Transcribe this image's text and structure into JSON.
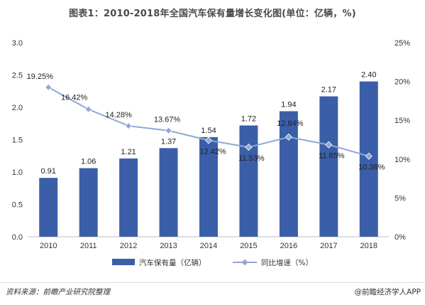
{
  "chart_data": {
    "type": "bar+line",
    "title": "图表1：2010-2018年全国汽车保有量增长变化图(单位：亿辆，%)",
    "categories": [
      "2010",
      "2011",
      "2012",
      "2013",
      "2014",
      "2015",
      "2016",
      "2017",
      "2018"
    ],
    "series": [
      {
        "name": "汽车保有量（亿辆）",
        "type": "bar",
        "axis": "left",
        "color": "#3a5fa8",
        "values": [
          0.91,
          1.06,
          1.21,
          1.37,
          1.54,
          1.72,
          1.94,
          2.17,
          2.4
        ],
        "labels": [
          "0.91",
          "1.06",
          "1.21",
          "1.37",
          "1.54",
          "1.72",
          "1.94",
          "2.17",
          "2.40"
        ]
      },
      {
        "name": "同比增速（%）",
        "type": "line",
        "axis": "right",
        "color": "#8fa8d4",
        "values": [
          19.25,
          16.42,
          14.28,
          13.67,
          12.42,
          11.53,
          12.84,
          11.85,
          10.38
        ],
        "labels": [
          "19.25%",
          "16.42%",
          "14.28%",
          "13.67%",
          "12.42%",
          "11.53%",
          "12.84%",
          "11.85%",
          "10.38%"
        ]
      }
    ],
    "y_left": {
      "min": 0,
      "max": 3.0,
      "ticks": [
        0.0,
        0.5,
        1.0,
        1.5,
        2.0,
        2.5,
        3.0
      ],
      "tick_labels": [
        "0.0",
        "0.5",
        "1.0",
        "1.5",
        "2.0",
        "2.5",
        "3.0"
      ]
    },
    "y_right": {
      "min": 0,
      "max": 25,
      "ticks": [
        0,
        5,
        10,
        15,
        20,
        25
      ],
      "tick_labels": [
        "0%",
        "5%",
        "10%",
        "15%",
        "20%",
        "25%"
      ]
    },
    "grid": false,
    "legend_position": "bottom-center"
  },
  "footer": {
    "source": "资料来源：前瞻产业研究院整理",
    "brand": "@前瞻经济学人APP"
  }
}
